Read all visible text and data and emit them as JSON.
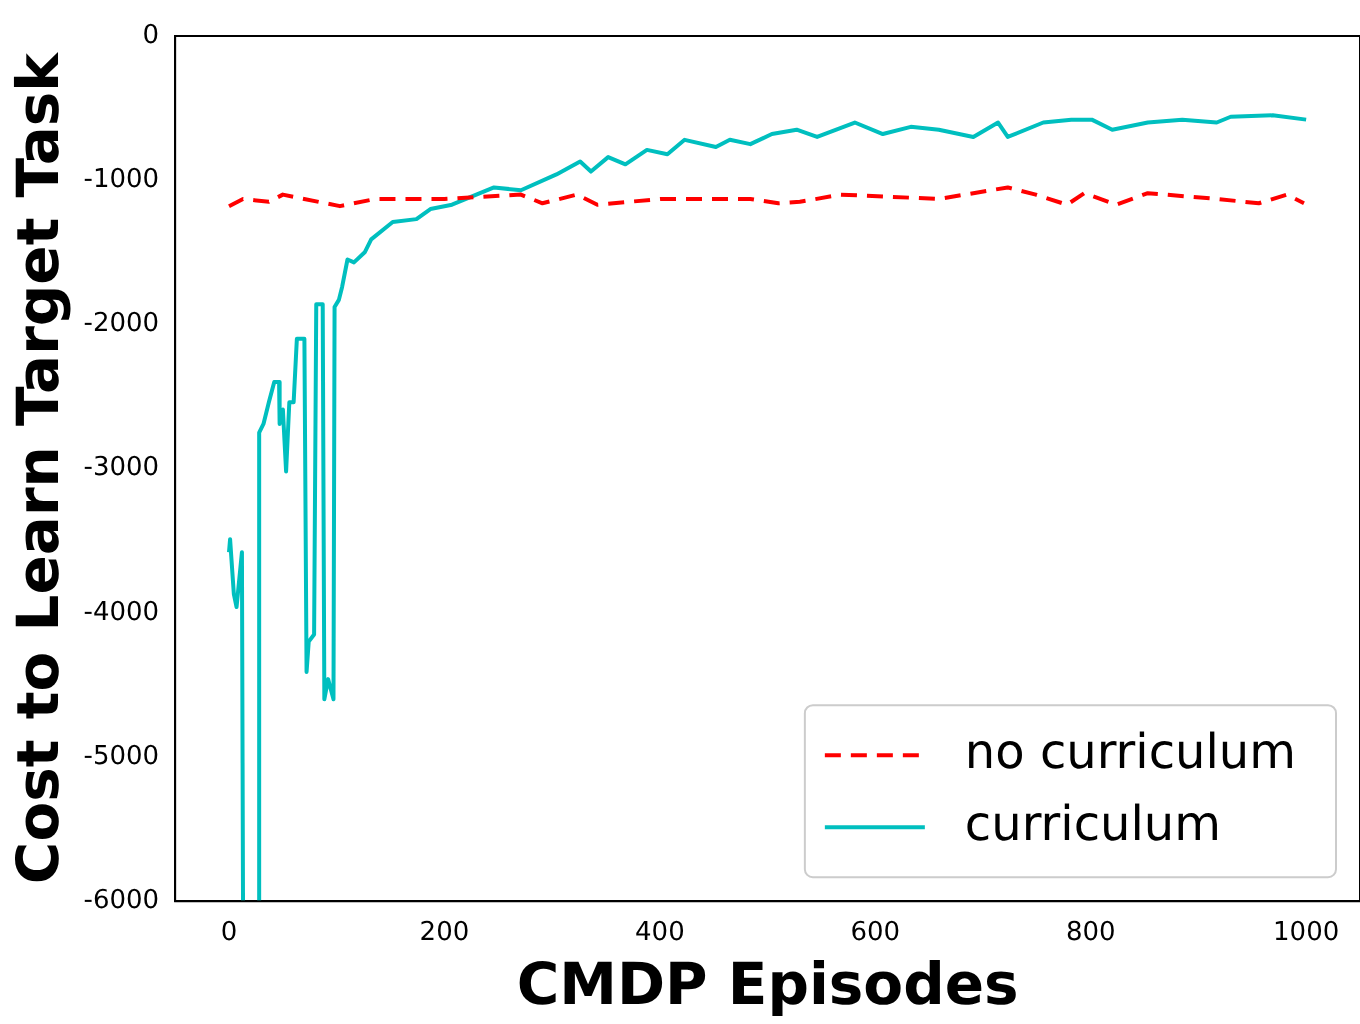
{
  "chart_data": {
    "type": "line",
    "xlabel": "CMDP Episodes",
    "ylabel": "Cost to Learn Target Task",
    "xlim": [
      -50,
      1050
    ],
    "ylim": [
      -6000,
      0
    ],
    "xticks": [
      0,
      200,
      400,
      600,
      800,
      1000
    ],
    "yticks": [
      -6000,
      -5000,
      -4000,
      -3000,
      -2000,
      -1000,
      0
    ],
    "grid": false,
    "legend": "bottom right",
    "marker": "none",
    "series": [
      {
        "name": "no curriculum",
        "color": "#ff0000",
        "line_style": "dashed",
        "x": [
          0,
          13,
          37,
          50,
          103,
          136,
          200,
          271,
          291,
          323,
          342,
          401,
          484,
          510,
          530,
          568,
          659,
          723,
          749,
          778,
          794,
          824,
          853,
          917,
          956,
          982,
          998
        ],
        "values": [
          -1180,
          -1130,
          -1150,
          -1100,
          -1180,
          -1130,
          -1130,
          -1100,
          -1160,
          -1100,
          -1170,
          -1130,
          -1130,
          -1160,
          -1150,
          -1100,
          -1130,
          -1050,
          -1100,
          -1170,
          -1090,
          -1170,
          -1090,
          -1130,
          -1160,
          -1100,
          -1160
        ]
      },
      {
        "name": "curriculum",
        "color": "#00bfbf",
        "line_style": "solid",
        "x": [
          0,
          1,
          4.5,
          7,
          12,
          13,
          20,
          27.8,
          28,
          32,
          37,
          42,
          46.5,
          47,
          50,
          53,
          56,
          60,
          63,
          70,
          72,
          74,
          79,
          81,
          87,
          88.5,
          92,
          97,
          98,
          102,
          105,
          110,
          116,
          126,
          132,
          152,
          174,
          187,
          207,
          246,
          271,
          304,
          326,
          336,
          352,
          368,
          388,
          407,
          423,
          452,
          465,
          484,
          504,
          527,
          546,
          581,
          607,
          633,
          659,
          691,
          714,
          723,
          756,
          782,
          801,
          820,
          853,
          885,
          917,
          930,
          969,
          1000
        ],
        "values": [
          -3580,
          -3490,
          -3870,
          -3960,
          -3580,
          -6000,
          null,
          -6000,
          -2750,
          -2690,
          -2540,
          -2400,
          -2400,
          -2690,
          -2590,
          -3020,
          -2540,
          -2540,
          -2100,
          -2100,
          -4410,
          -4200,
          -4150,
          -1860,
          -1860,
          -4600,
          -4460,
          -4600,
          -1880,
          -1830,
          -1740,
          -1550,
          -1570,
          -1500,
          -1410,
          -1290,
          -1270,
          -1200,
          -1170,
          -1050,
          -1070,
          -960,
          -870,
          -940,
          -840,
          -890,
          -790,
          -820,
          -720,
          -770,
          -720,
          -750,
          -680,
          -650,
          -700,
          -600,
          -680,
          -630,
          -650,
          -700,
          -600,
          -700,
          -600,
          -580,
          -580,
          -650,
          -600,
          -580,
          -600,
          -560,
          -550,
          -580
        ]
      }
    ]
  }
}
